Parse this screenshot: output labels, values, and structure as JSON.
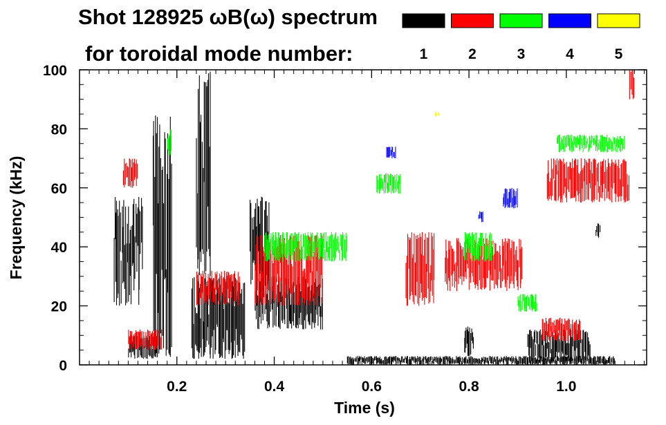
{
  "chart_data": {
    "type": "heatmap",
    "title": "Shot 128925 ωB(ω) spectrum",
    "subtitle": "for toroidal mode number:",
    "xlabel": "Time (s)",
    "ylabel": "Frequency (kHz)",
    "xlim": [
      0.0,
      1.165
    ],
    "ylim": [
      0,
      100
    ],
    "x_ticks": [
      {
        "value": 0.2,
        "label": "0.2"
      },
      {
        "value": 0.4,
        "label": "0.4"
      },
      {
        "value": 0.6,
        "label": "0.6"
      },
      {
        "value": 0.8,
        "label": "0.8"
      },
      {
        "value": 1.0,
        "label": "1.0"
      }
    ],
    "y_ticks": [
      {
        "value": 0,
        "label": "0"
      },
      {
        "value": 20,
        "label": "20"
      },
      {
        "value": 40,
        "label": "40"
      },
      {
        "value": 60,
        "label": "60"
      },
      {
        "value": 80,
        "label": "80"
      },
      {
        "value": 100,
        "label": "100"
      }
    ],
    "legend": [
      {
        "n": "1",
        "color": "#000000"
      },
      {
        "n": "2",
        "color": "#ff0000"
      },
      {
        "n": "3",
        "color": "#00ff00"
      },
      {
        "n": "4",
        "color": "#0000ff"
      },
      {
        "n": "5",
        "color": "#ffff00"
      }
    ],
    "series": [
      {
        "name": "n=1",
        "mode": 1,
        "color": "#000000",
        "features": [
          {
            "t0": 0.07,
            "t1": 0.13,
            "f0": 20,
            "f1": 57
          },
          {
            "t0": 0.1,
            "t1": 0.16,
            "f0": 2,
            "f1": 10
          },
          {
            "t0": 0.15,
            "t1": 0.19,
            "f0": 2,
            "f1": 85
          },
          {
            "t0": 0.23,
            "t1": 0.34,
            "f0": 2,
            "f1": 30
          },
          {
            "t0": 0.24,
            "t1": 0.27,
            "f0": 30,
            "f1": 100
          },
          {
            "t0": 0.35,
            "t1": 0.39,
            "f0": 25,
            "f1": 57
          },
          {
            "t0": 0.36,
            "t1": 0.5,
            "f0": 12,
            "f1": 30
          },
          {
            "t0": 0.55,
            "t1": 1.1,
            "f0": 0,
            "f1": 3
          },
          {
            "t0": 0.79,
            "t1": 0.81,
            "f0": 3,
            "f1": 13
          },
          {
            "t0": 0.92,
            "t1": 1.05,
            "f0": 1,
            "f1": 12
          },
          {
            "t0": 1.06,
            "t1": 1.07,
            "f0": 43,
            "f1": 48
          }
        ]
      },
      {
        "name": "n=2",
        "mode": 2,
        "color": "#ff0000",
        "features": [
          {
            "t0": 0.1,
            "t1": 0.17,
            "f0": 5,
            "f1": 12
          },
          {
            "t0": 0.09,
            "t1": 0.12,
            "f0": 60,
            "f1": 70
          },
          {
            "t0": 0.24,
            "t1": 0.33,
            "f0": 20,
            "f1": 32
          },
          {
            "t0": 0.36,
            "t1": 0.5,
            "f0": 20,
            "f1": 44
          },
          {
            "t0": 0.67,
            "t1": 0.73,
            "f0": 20,
            "f1": 45
          },
          {
            "t0": 0.75,
            "t1": 0.91,
            "f0": 25,
            "f1": 43
          },
          {
            "t0": 0.95,
            "t1": 1.03,
            "f0": 8,
            "f1": 16
          },
          {
            "t0": 0.96,
            "t1": 1.13,
            "f0": 55,
            "f1": 70
          },
          {
            "t0": 1.13,
            "t1": 1.14,
            "f0": 90,
            "f1": 100
          }
        ]
      },
      {
        "name": "n=3",
        "mode": 3,
        "color": "#00ff00",
        "features": [
          {
            "t0": 0.18,
            "t1": 0.19,
            "f0": 70,
            "f1": 80
          },
          {
            "t0": 0.38,
            "t1": 0.55,
            "f0": 35,
            "f1": 45
          },
          {
            "t0": 0.61,
            "t1": 0.66,
            "f0": 58,
            "f1": 65
          },
          {
            "t0": 0.79,
            "t1": 0.85,
            "f0": 35,
            "f1": 45
          },
          {
            "t0": 0.9,
            "t1": 0.94,
            "f0": 18,
            "f1": 24
          },
          {
            "t0": 0.98,
            "t1": 1.12,
            "f0": 72,
            "f1": 78
          }
        ]
      },
      {
        "name": "n=4",
        "mode": 4,
        "color": "#0000ff",
        "features": [
          {
            "t0": 0.82,
            "t1": 0.83,
            "f0": 48,
            "f1": 52
          },
          {
            "t0": 0.87,
            "t1": 0.9,
            "f0": 53,
            "f1": 60
          },
          {
            "t0": 0.63,
            "t1": 0.65,
            "f0": 70,
            "f1": 74
          }
        ]
      },
      {
        "name": "n=5",
        "mode": 5,
        "color": "#ffff00",
        "features": [
          {
            "t0": 0.73,
            "t1": 0.74,
            "f0": 84,
            "f1": 86
          }
        ]
      }
    ]
  }
}
